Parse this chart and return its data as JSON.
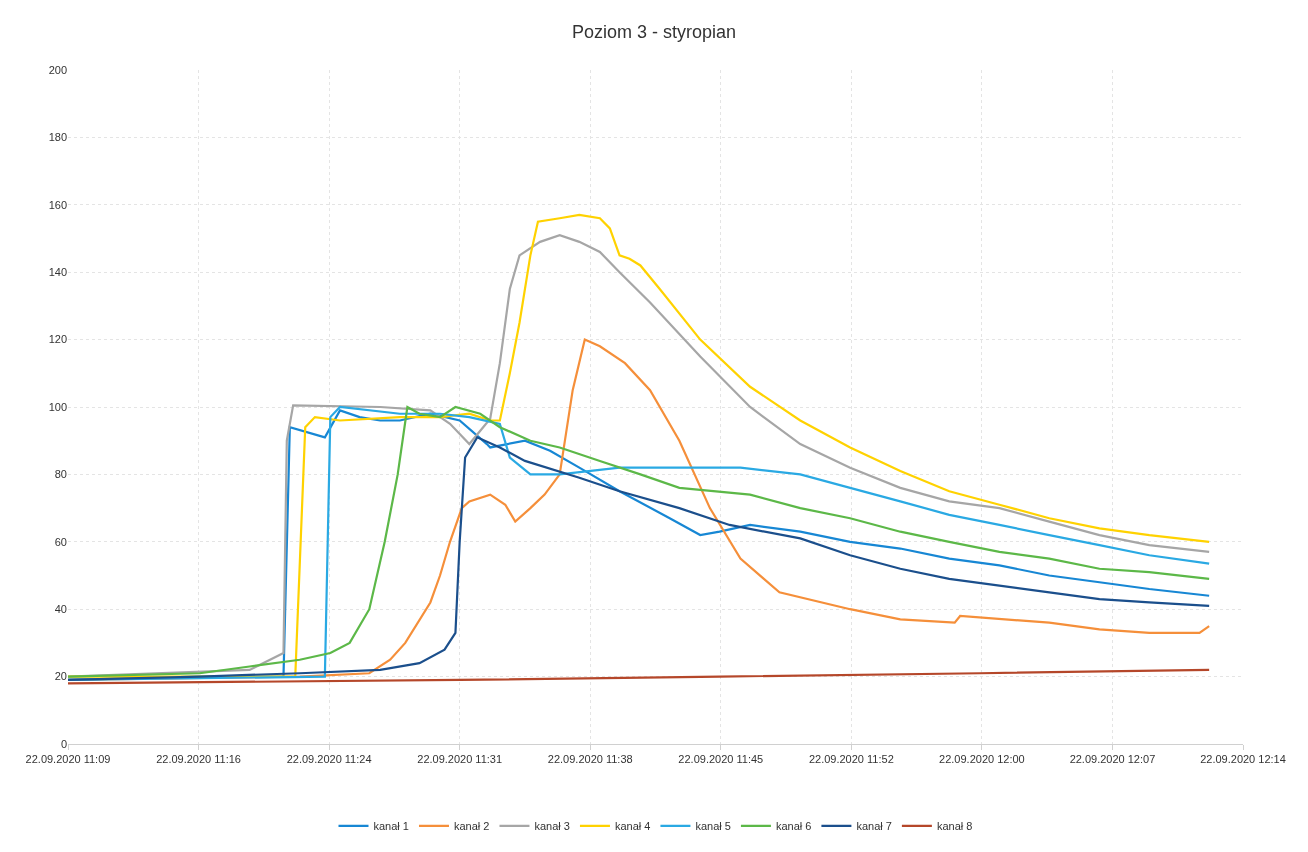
{
  "chart_data": {
    "type": "line",
    "title": "Poziom 3 - styropian",
    "xlim": [
      "2020-09-22T11:09:36",
      "2020-09-22T12:14:24"
    ],
    "xticks": [
      {
        "value": "2020-09-22T11:09:36",
        "label": "22.09.2020 11:09"
      },
      {
        "value": "2020-09-22T11:16:48",
        "label": "22.09.2020 11:16"
      },
      {
        "value": "2020-09-22T11:24:00",
        "label": "22.09.2020 11:24"
      },
      {
        "value": "2020-09-22T11:31:12",
        "label": "22.09.2020 11:31"
      },
      {
        "value": "2020-09-22T11:38:24",
        "label": "22.09.2020 11:38"
      },
      {
        "value": "2020-09-22T11:45:36",
        "label": "22.09.2020 11:45"
      },
      {
        "value": "2020-09-22T11:52:48",
        "label": "22.09.2020 11:52"
      },
      {
        "value": "2020-09-22T12:00:00",
        "label": "22.09.2020 12:00"
      },
      {
        "value": "2020-09-22T12:07:12",
        "label": "22.09.2020 12:07"
      },
      {
        "value": "2020-09-22T12:14:24",
        "label": "22.09.2020 12:14"
      }
    ],
    "ylim": [
      0,
      200
    ],
    "yticks": [
      0,
      20,
      40,
      60,
      80,
      100,
      120,
      140,
      160,
      180,
      200
    ],
    "grid": true,
    "legend": "bottom",
    "marker": "none",
    "line_style": "solid",
    "series": [
      {
        "name": "kanał 1",
        "color": "#1787d4",
        "x": [
          "2020-09-22T11:09:36",
          "2020-09-22T11:16:52",
          "2020-09-22T11:21:29",
          "2020-09-22T11:21:50",
          "2020-09-22T11:23:46",
          "2020-09-22T11:24:36",
          "2020-09-22T11:25:41",
          "2020-09-22T11:26:49",
          "2020-09-22T11:27:54",
          "2020-09-22T11:29:35",
          "2020-09-22T11:31:12",
          "2020-09-22T11:32:42",
          "2020-09-22T11:32:53",
          "2020-09-22T11:34:48",
          "2020-09-22T11:36:11",
          "2020-09-22T11:37:48",
          "2020-09-22T11:40:01",
          "2020-09-22T11:42:47",
          "2020-09-22T11:44:28",
          "2020-09-22T11:45:32",
          "2020-09-22T11:47:13",
          "2020-09-22T11:49:59",
          "2020-09-22T11:52:44",
          "2020-09-22T11:55:30",
          "2020-09-22T11:58:12",
          "2020-09-22T12:00:58",
          "2020-09-22T12:03:43",
          "2020-09-22T12:06:29",
          "2020-09-22T12:09:14",
          "2020-09-22T12:12:32"
        ],
        "values": [
          19,
          20,
          20,
          94,
          91,
          99,
          97,
          96,
          96,
          98,
          96,
          89,
          88,
          90,
          87,
          82,
          75,
          67,
          62,
          63,
          65,
          63,
          60,
          58,
          55,
          53,
          50,
          48,
          46,
          44
        ]
      },
      {
        "name": "kanał 2",
        "color": "#f58f3a",
        "x": [
          "2020-09-22T11:09:36",
          "2020-09-22T11:22:23",
          "2020-09-22T11:26:13",
          "2020-09-22T11:27:22",
          "2020-09-22T11:28:12",
          "2020-09-22T11:29:35",
          "2020-09-22T11:30:07",
          "2020-09-22T11:30:40",
          "2020-09-22T11:31:19",
          "2020-09-22T11:31:44",
          "2020-09-22T11:32:53",
          "2020-09-22T11:33:43",
          "2020-09-22T11:34:16",
          "2020-09-22T11:35:06",
          "2020-09-22T11:35:53",
          "2020-09-22T11:36:43",
          "2020-09-22T11:37:26",
          "2020-09-22T11:38:06",
          "2020-09-22T11:38:56",
          "2020-09-22T11:40:19",
          "2020-09-22T11:41:42",
          "2020-09-22T11:43:19",
          "2020-09-22T11:45:00",
          "2020-09-22T11:46:41",
          "2020-09-22T11:48:50",
          "2020-09-22T11:52:44",
          "2020-09-22T11:55:30",
          "2020-09-22T11:58:30",
          "2020-09-22T11:58:48",
          "2020-09-22T12:03:43",
          "2020-09-22T12:06:29",
          "2020-09-22T12:09:14",
          "2020-09-22T12:12:00",
          "2020-09-22T12:12:32"
        ],
        "values": [
          19,
          20,
          21,
          25,
          30,
          42,
          50,
          60,
          70,
          72,
          74,
          71,
          66,
          70,
          74,
          80,
          105,
          120,
          118,
          113,
          105,
          90,
          70,
          55,
          45,
          40,
          37,
          36,
          38,
          36,
          34,
          33,
          33,
          35
        ]
      },
      {
        "name": "kanał 3",
        "color": "#a6a6a6",
        "x": [
          "2020-09-22T11:09:36",
          "2020-09-22T11:19:37",
          "2020-09-22T11:21:29",
          "2020-09-22T11:21:40",
          "2020-09-22T11:22:01",
          "2020-09-22T11:26:49",
          "2020-09-22T11:29:35",
          "2020-09-22T11:30:40",
          "2020-09-22T11:31:44",
          "2020-09-22T11:32:53",
          "2020-09-22T11:33:25",
          "2020-09-22T11:33:58",
          "2020-09-22T11:34:30",
          "2020-09-22T11:35:38",
          "2020-09-22T11:36:43",
          "2020-09-22T11:37:48",
          "2020-09-22T11:38:56",
          "2020-09-22T11:40:01",
          "2020-09-22T11:41:42",
          "2020-09-22T11:44:28",
          "2020-09-22T11:47:13",
          "2020-09-22T11:49:59",
          "2020-09-22T11:52:44",
          "2020-09-22T11:55:30",
          "2020-09-22T11:58:12",
          "2020-09-22T12:00:58",
          "2020-09-22T12:03:43",
          "2020-09-22T12:06:29",
          "2020-09-22T12:09:14",
          "2020-09-22T12:12:32"
        ],
        "values": [
          20,
          22,
          27,
          90,
          100.5,
          100,
          99,
          95,
          89,
          96.5,
          113,
          135,
          145,
          149,
          151,
          149,
          146,
          140,
          131,
          115,
          100,
          89,
          82,
          76,
          72,
          70,
          66,
          62,
          59,
          57
        ]
      },
      {
        "name": "kanał 4",
        "color": "#ffd200",
        "x": [
          "2020-09-22T11:09:36",
          "2020-09-22T11:22:08",
          "2020-09-22T11:22:41",
          "2020-09-22T11:23:13",
          "2020-09-22T11:24:36",
          "2020-09-22T11:27:54",
          "2020-09-22T11:30:07",
          "2020-09-22T11:31:44",
          "2020-09-22T11:32:53",
          "2020-09-22T11:33:25",
          "2020-09-22T11:33:58",
          "2020-09-22T11:34:30",
          "2020-09-22T11:35:06",
          "2020-09-22T11:35:31",
          "2020-09-22T11:36:43",
          "2020-09-22T11:37:48",
          "2020-09-22T11:38:56",
          "2020-09-22T11:39:29",
          "2020-09-22T11:40:01",
          "2020-09-22T11:40:34",
          "2020-09-22T11:41:10",
          "2020-09-22T11:42:14",
          "2020-09-22T11:44:28",
          "2020-09-22T11:47:13",
          "2020-09-22T11:49:59",
          "2020-09-22T11:52:44",
          "2020-09-22T11:55:30",
          "2020-09-22T11:58:12",
          "2020-09-22T12:00:58",
          "2020-09-22T12:03:43",
          "2020-09-22T12:06:29",
          "2020-09-22T12:09:14",
          "2020-09-22T12:12:32"
        ],
        "values": [
          20,
          20,
          94,
          97,
          96,
          97,
          97,
          98,
          96,
          96,
          110,
          125,
          145,
          155,
          156,
          157,
          156,
          153,
          145,
          144,
          142,
          135,
          120,
          106,
          96,
          88,
          81,
          75,
          71,
          67,
          64,
          62,
          60
        ]
      },
      {
        "name": "kanał 5",
        "color": "#2aa9e3",
        "x": [
          "2020-09-22T11:09:36",
          "2020-09-22T11:23:46",
          "2020-09-22T11:24:04",
          "2020-09-22T11:24:36",
          "2020-09-22T11:27:54",
          "2020-09-22T11:30:07",
          "2020-09-22T11:31:44",
          "2020-09-22T11:33:25",
          "2020-09-22T11:33:58",
          "2020-09-22T11:35:06",
          "2020-09-22T11:36:43",
          "2020-09-22T11:40:01",
          "2020-09-22T11:44:28",
          "2020-09-22T11:46:41",
          "2020-09-22T11:49:59",
          "2020-09-22T11:52:44",
          "2020-09-22T11:55:30",
          "2020-09-22T11:58:12",
          "2020-09-22T12:00:58",
          "2020-09-22T12:03:43",
          "2020-09-22T12:06:29",
          "2020-09-22T12:09:14",
          "2020-09-22T12:12:32"
        ],
        "values": [
          19,
          20,
          97,
          100,
          98,
          98,
          97,
          95,
          85,
          80,
          80,
          82,
          82,
          82,
          80,
          76,
          72,
          68,
          65,
          62,
          59,
          56,
          53.5
        ]
      },
      {
        "name": "kanał 6",
        "color": "#5cb848",
        "x": [
          "2020-09-22T11:09:36",
          "2020-09-22T11:16:52",
          "2020-09-22T11:19:37",
          "2020-09-22T11:22:23",
          "2020-09-22T11:24:04",
          "2020-09-22T11:25:08",
          "2020-09-22T11:26:13",
          "2020-09-22T11:27:04",
          "2020-09-22T11:27:47",
          "2020-09-22T11:28:19",
          "2020-09-22T11:28:59",
          "2020-09-22T11:30:07",
          "2020-09-22T11:30:58",
          "2020-09-22T11:32:20",
          "2020-09-22T11:33:25",
          "2020-09-22T11:35:06",
          "2020-09-22T11:36:43",
          "2020-09-22T11:38:56",
          "2020-09-22T11:41:10",
          "2020-09-22T11:43:19",
          "2020-09-22T11:47:13",
          "2020-09-22T11:49:59",
          "2020-09-22T11:52:44",
          "2020-09-22T11:55:30",
          "2020-09-22T11:58:12",
          "2020-09-22T12:00:58",
          "2020-09-22T12:03:43",
          "2020-09-22T12:06:29",
          "2020-09-22T12:09:14",
          "2020-09-22T12:12:32"
        ],
        "values": [
          20,
          21,
          23,
          25,
          27,
          30,
          40,
          60,
          80,
          100,
          98,
          97,
          100,
          98,
          94,
          90,
          88,
          84,
          80,
          76,
          74,
          70,
          67,
          63,
          60,
          57,
          55,
          52,
          51,
          49
        ]
      },
      {
        "name": "kanał 7",
        "color": "#1b4f8c",
        "x": [
          "2020-09-22T11:09:36",
          "2020-09-22T11:16:52",
          "2020-09-22T11:22:23",
          "2020-09-22T11:26:49",
          "2020-09-22T11:28:59",
          "2020-09-22T11:30:22",
          "2020-09-22T11:30:58",
          "2020-09-22T11:31:12",
          "2020-09-22T11:31:30",
          "2020-09-22T11:32:10",
          "2020-09-22T11:33:25",
          "2020-09-22T11:34:48",
          "2020-09-22T11:37:48",
          "2020-09-22T11:40:01",
          "2020-09-22T11:43:19",
          "2020-09-22T11:46:05",
          "2020-09-22T11:49:59",
          "2020-09-22T11:52:44",
          "2020-09-22T11:55:30",
          "2020-09-22T11:58:12",
          "2020-09-22T12:00:58",
          "2020-09-22T12:03:43",
          "2020-09-22T12:06:29",
          "2020-09-22T12:09:14",
          "2020-09-22T12:12:32"
        ],
        "values": [
          19,
          20,
          21,
          22,
          24,
          28,
          33,
          60,
          85,
          91,
          88,
          84,
          79,
          75,
          70,
          65,
          61,
          56,
          52,
          49,
          47,
          45,
          43,
          42,
          41
        ]
      },
      {
        "name": "kanał 8",
        "color": "#b5472a",
        "x": [
          "2020-09-22T11:09:36",
          "2020-09-22T11:31:12",
          "2020-09-22T11:45:32",
          "2020-09-22T11:59:53",
          "2020-09-22T12:12:32"
        ],
        "values": [
          18,
          19,
          20,
          21,
          22
        ]
      }
    ]
  }
}
